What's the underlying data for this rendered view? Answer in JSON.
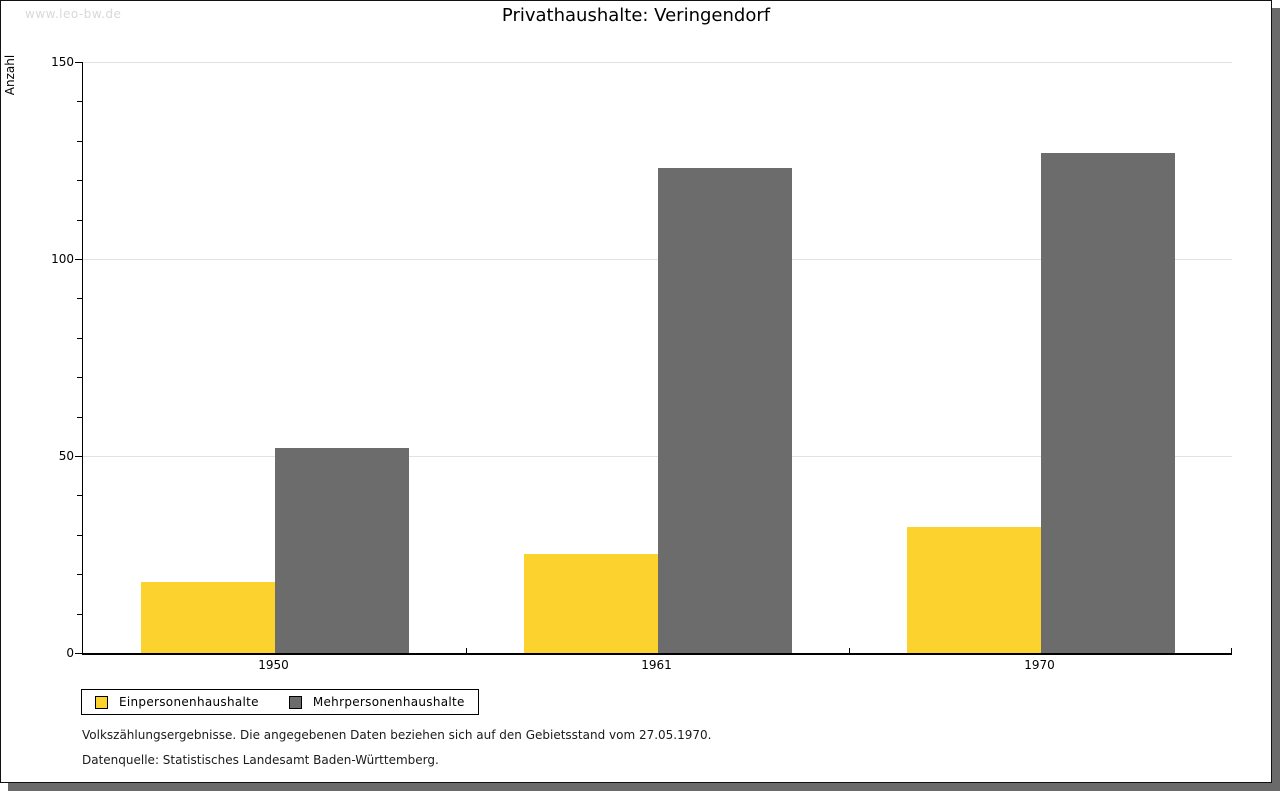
{
  "watermark": "www.leo-bw.de",
  "chart_data": {
    "type": "bar",
    "title": "Privathaushalte: Veringendorf",
    "ylabel": "Anzahl",
    "xlabel": "",
    "categories": [
      "1950",
      "1961",
      "1970"
    ],
    "series": [
      {
        "name": "Einpersonenhaushalte",
        "color": "#FCD32E",
        "values": [
          18,
          25,
          32
        ]
      },
      {
        "name": "Mehrpersonenhaushalte",
        "color": "#6C6C6C",
        "values": [
          52,
          123,
          127
        ]
      }
    ],
    "ylim": [
      0,
      150
    ],
    "yticks": [
      0,
      50,
      100,
      150
    ],
    "minor_tick_step": 10,
    "grid": true,
    "grid_color": "#E2E2E2",
    "legend_position": "bottom-left"
  },
  "footnotes": {
    "line1": "Volkszählungsergebnisse. Die angegebenen Daten beziehen sich auf den Gebietsstand vom 27.05.1970.",
    "line2": "Datenquelle: Statistisches Landesamt Baden-Württemberg."
  }
}
